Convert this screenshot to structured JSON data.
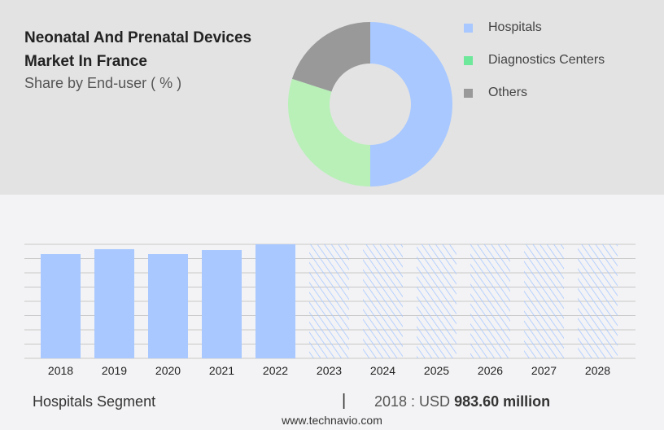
{
  "title": "Neonatal And Prenatal Devices Market In France",
  "subtitle": "Share by End-user ( % )",
  "chart_data": [
    {
      "type": "pie",
      "donut": true,
      "title": "Neonatal And Prenatal Devices Market In France",
      "subtitle": "Share by End-user ( % )",
      "legend_position": "right",
      "slices": [
        {
          "name": "Hospitals",
          "value": 50,
          "color": "#a8c8ff"
        },
        {
          "name": "Diagnostics Centers",
          "value": 30,
          "color": "#b8f0b8"
        },
        {
          "name": "Others",
          "value": 20,
          "color": "#999999"
        }
      ],
      "legend_colors": [
        "#a8c8ff",
        "#6ee89a",
        "#999999"
      ]
    },
    {
      "type": "bar",
      "categories": [
        "2018",
        "2019",
        "2020",
        "2021",
        "2022",
        "2023",
        "2024",
        "2025",
        "2026",
        "2027",
        "2028"
      ],
      "values": [
        983.6,
        1030,
        983.6,
        1022,
        1076,
        null,
        null,
        null,
        null,
        null,
        null
      ],
      "forecast_from": "2023",
      "forecast_style": "hatched",
      "color": "#a8c8ff",
      "grid": true,
      "ylim": [
        0,
        1076
      ],
      "y_axis_labels": false
    }
  ],
  "footer": {
    "segment": "Hospitals Segment",
    "separator": "|",
    "value_prefix": "2018 : USD",
    "value": "983.60 million",
    "url": "www.technavio.com"
  }
}
